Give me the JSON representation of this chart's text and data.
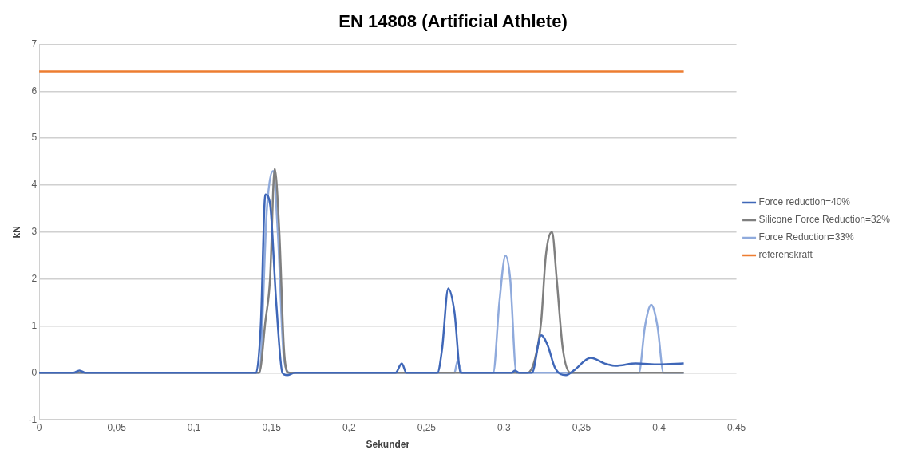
{
  "chart_data": {
    "type": "line",
    "title": "EN 14808 (Artificial Athlete)",
    "xlabel": "Sekunder",
    "ylabel": "kN",
    "xlim": [
      0,
      0.45
    ],
    "xticks": [
      0,
      {
        "value": 0.05,
        "label": "0,05"
      },
      {
        "value": 0.1,
        "label": "0,1"
      },
      {
        "value": 0.15,
        "label": "0,15"
      },
      {
        "value": 0.2,
        "label": "0,2"
      },
      {
        "value": 0.25,
        "label": "0,25"
      },
      {
        "value": 0.3,
        "label": "0,3"
      },
      {
        "value": 0.35,
        "label": "0,35"
      },
      {
        "value": 0.4,
        "label": "0,4"
      },
      {
        "value": 0.45,
        "label": "0,45"
      }
    ],
    "ylim": [
      -1,
      7
    ],
    "yticks": [
      -1,
      0,
      1,
      2,
      3,
      4,
      5,
      6,
      7
    ],
    "grid": "y",
    "legend": "right",
    "marker": "none",
    "line_style": "solid",
    "series": [
      {
        "name": "Force reduction=40%",
        "color": "#3f67b8",
        "x": [
          0,
          0.022,
          0.026,
          0.03,
          0.14,
          0.143,
          0.146,
          0.149,
          0.153,
          0.157,
          0.16,
          0.165,
          0.23,
          0.234,
          0.237,
          0.257,
          0.26,
          0.264,
          0.268,
          0.272,
          0.305,
          0.307,
          0.31,
          0.318,
          0.324,
          0.328,
          0.333,
          0.34,
          0.345,
          0.356,
          0.365,
          0.372,
          0.385,
          0.4,
          0.416
        ],
        "values": [
          0,
          0,
          0.05,
          0,
          0,
          1.0,
          3.8,
          3.6,
          1.5,
          0,
          -0.05,
          0,
          0,
          0.2,
          0,
          0,
          0.5,
          1.8,
          1.3,
          0,
          0,
          0.05,
          0,
          0,
          0.8,
          0.6,
          0.1,
          -0.05,
          0.05,
          0.32,
          0.2,
          0.15,
          0.2,
          0.18,
          0.2
        ]
      },
      {
        "name": "Silicone Force Reduction=32%",
        "color": "#7f7f7f",
        "x": [
          0,
          0.142,
          0.146,
          0.149,
          0.152,
          0.155,
          0.158,
          0.161,
          0.315,
          0.32,
          0.324,
          0.327,
          0.331,
          0.334,
          0.338,
          0.343,
          0.416
        ],
        "values": [
          0,
          0,
          1.1,
          2.0,
          4.35,
          3.0,
          0.5,
          0,
          0,
          0.3,
          1.1,
          2.5,
          3.0,
          2.0,
          0.5,
          0,
          0
        ]
      },
      {
        "name": "Force Reduction=33%",
        "color": "#8faadc",
        "x": [
          0,
          0.142,
          0.147,
          0.151,
          0.154,
          0.158,
          0.162,
          0.268,
          0.27,
          0.273,
          0.293,
          0.297,
          0.301,
          0.304,
          0.308,
          0.387,
          0.391,
          0.395,
          0.399,
          0.403,
          0.416
        ],
        "values": [
          0,
          0,
          3.5,
          4.3,
          3.0,
          0.3,
          0,
          0,
          0.25,
          0,
          0,
          1.5,
          2.5,
          2.0,
          0,
          0,
          1.0,
          1.45,
          1.0,
          0,
          0
        ]
      },
      {
        "name": "referenskraft",
        "color": "#ed7d31",
        "x": [
          0,
          0.416
        ],
        "values": [
          6.42,
          6.42
        ]
      }
    ]
  }
}
